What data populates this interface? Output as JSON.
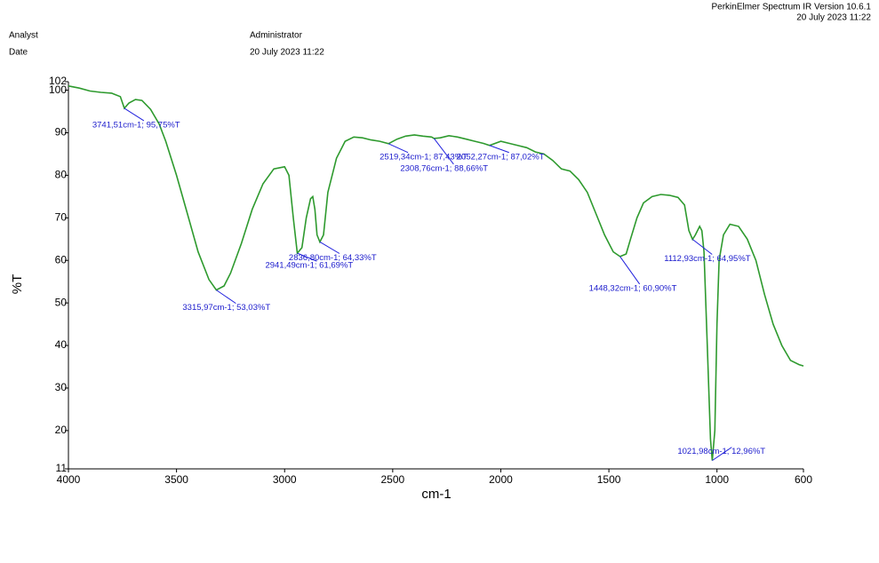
{
  "header": {
    "software": "PerkinElmer Spectrum IR Version 10.6.1",
    "software_date": "20 July 2023 11:22",
    "analyst_label": "Analyst",
    "analyst": "Administrator",
    "date_label": "Date",
    "date": "20 July 2023 11:22"
  },
  "chart_data": {
    "type": "line",
    "xlabel": "cm-1",
    "ylabel": "%T",
    "xlim": [
      4000,
      600
    ],
    "ylim": [
      11,
      102
    ],
    "xticks": [
      4000,
      3500,
      3000,
      2500,
      2000,
      1500,
      1000,
      600
    ],
    "yticks": [
      11,
      20,
      30,
      40,
      50,
      60,
      70,
      80,
      90,
      100,
      102
    ],
    "series": [
      {
        "color": "#2e9a2e",
        "x": [
          4000,
          3950,
          3900,
          3850,
          3800,
          3760,
          3741.51,
          3720,
          3690,
          3660,
          3620,
          3580,
          3550,
          3500,
          3450,
          3400,
          3350,
          3315.97,
          3280,
          3250,
          3200,
          3150,
          3100,
          3050,
          3000,
          2980,
          2960,
          2941.49,
          2920,
          2900,
          2880,
          2870,
          2860,
          2850,
          2836.8,
          2820,
          2800,
          2760,
          2720,
          2680,
          2640,
          2600,
          2560,
          2519.34,
          2480,
          2440,
          2400,
          2360,
          2320,
          2308.76,
          2280,
          2240,
          2200,
          2160,
          2120,
          2080,
          2052.27,
          2000,
          1960,
          1920,
          1880,
          1840,
          1800,
          1760,
          1720,
          1680,
          1640,
          1600,
          1560,
          1520,
          1480,
          1448.32,
          1420,
          1400,
          1370,
          1340,
          1300,
          1260,
          1220,
          1180,
          1150,
          1130,
          1112.93,
          1100,
          1080,
          1070,
          1060,
          1045,
          1030,
          1021.98,
          1010,
          1000,
          990,
          970,
          940,
          900,
          860,
          820,
          780,
          740,
          700,
          660,
          620,
          600
        ],
        "values": [
          101,
          100.5,
          99.8,
          99.5,
          99.3,
          98.5,
          95.75,
          97,
          97.8,
          97.6,
          95.5,
          92,
          88,
          80,
          71,
          62,
          55.5,
          53.03,
          54,
          57,
          64,
          72,
          78,
          81.5,
          82,
          80,
          70,
          61.69,
          63,
          70,
          74.5,
          75,
          72,
          66,
          64.33,
          66,
          76,
          84,
          88,
          89,
          88.8,
          88.3,
          88,
          87.43,
          88.5,
          89.2,
          89.5,
          89.2,
          89,
          88.66,
          88.8,
          89.3,
          89,
          88.5,
          88,
          87.5,
          87.02,
          88,
          87.5,
          87,
          86.5,
          85.5,
          85,
          83.5,
          81.5,
          81,
          79,
          76,
          71,
          66,
          62,
          60.9,
          61.5,
          65,
          70,
          73.5,
          75,
          75.5,
          75.3,
          74.8,
          73,
          67,
          64.95,
          66,
          68,
          67,
          62,
          40,
          18,
          12.96,
          20,
          45,
          60,
          66,
          68.5,
          68,
          65,
          60,
          52,
          45,
          40,
          36.5,
          35.5,
          35.2
        ]
      }
    ],
    "annotations": [
      {
        "x": 3741.51,
        "y": 95.75,
        "text": "3741,51cm-1; 95,75%T"
      },
      {
        "x": 3315.97,
        "y": 53.03,
        "text": "3315,97cm-1; 53,03%T"
      },
      {
        "x": 2941.49,
        "y": 61.69,
        "text": "2941,49cm-1; 61,69%T"
      },
      {
        "x": 2836.8,
        "y": 64.33,
        "text": "2836,80cm-1; 64,33%T"
      },
      {
        "x": 2519.34,
        "y": 87.43,
        "text": "2519,34cm-1; 87,43%T"
      },
      {
        "x": 2308.76,
        "y": 88.66,
        "text": "2308,76cm-1; 88,66%T"
      },
      {
        "x": 2052.27,
        "y": 87.02,
        "text": "2052,27cm-1; 87,02%T"
      },
      {
        "x": 1448.32,
        "y": 60.9,
        "text": "1448,32cm-1; 60,90%T"
      },
      {
        "x": 1112.93,
        "y": 64.95,
        "text": "1112,93cm-1; 64,95%T"
      },
      {
        "x": 1021.98,
        "y": 12.96,
        "text": "1021,98cm-1; 12,96%T"
      }
    ]
  }
}
